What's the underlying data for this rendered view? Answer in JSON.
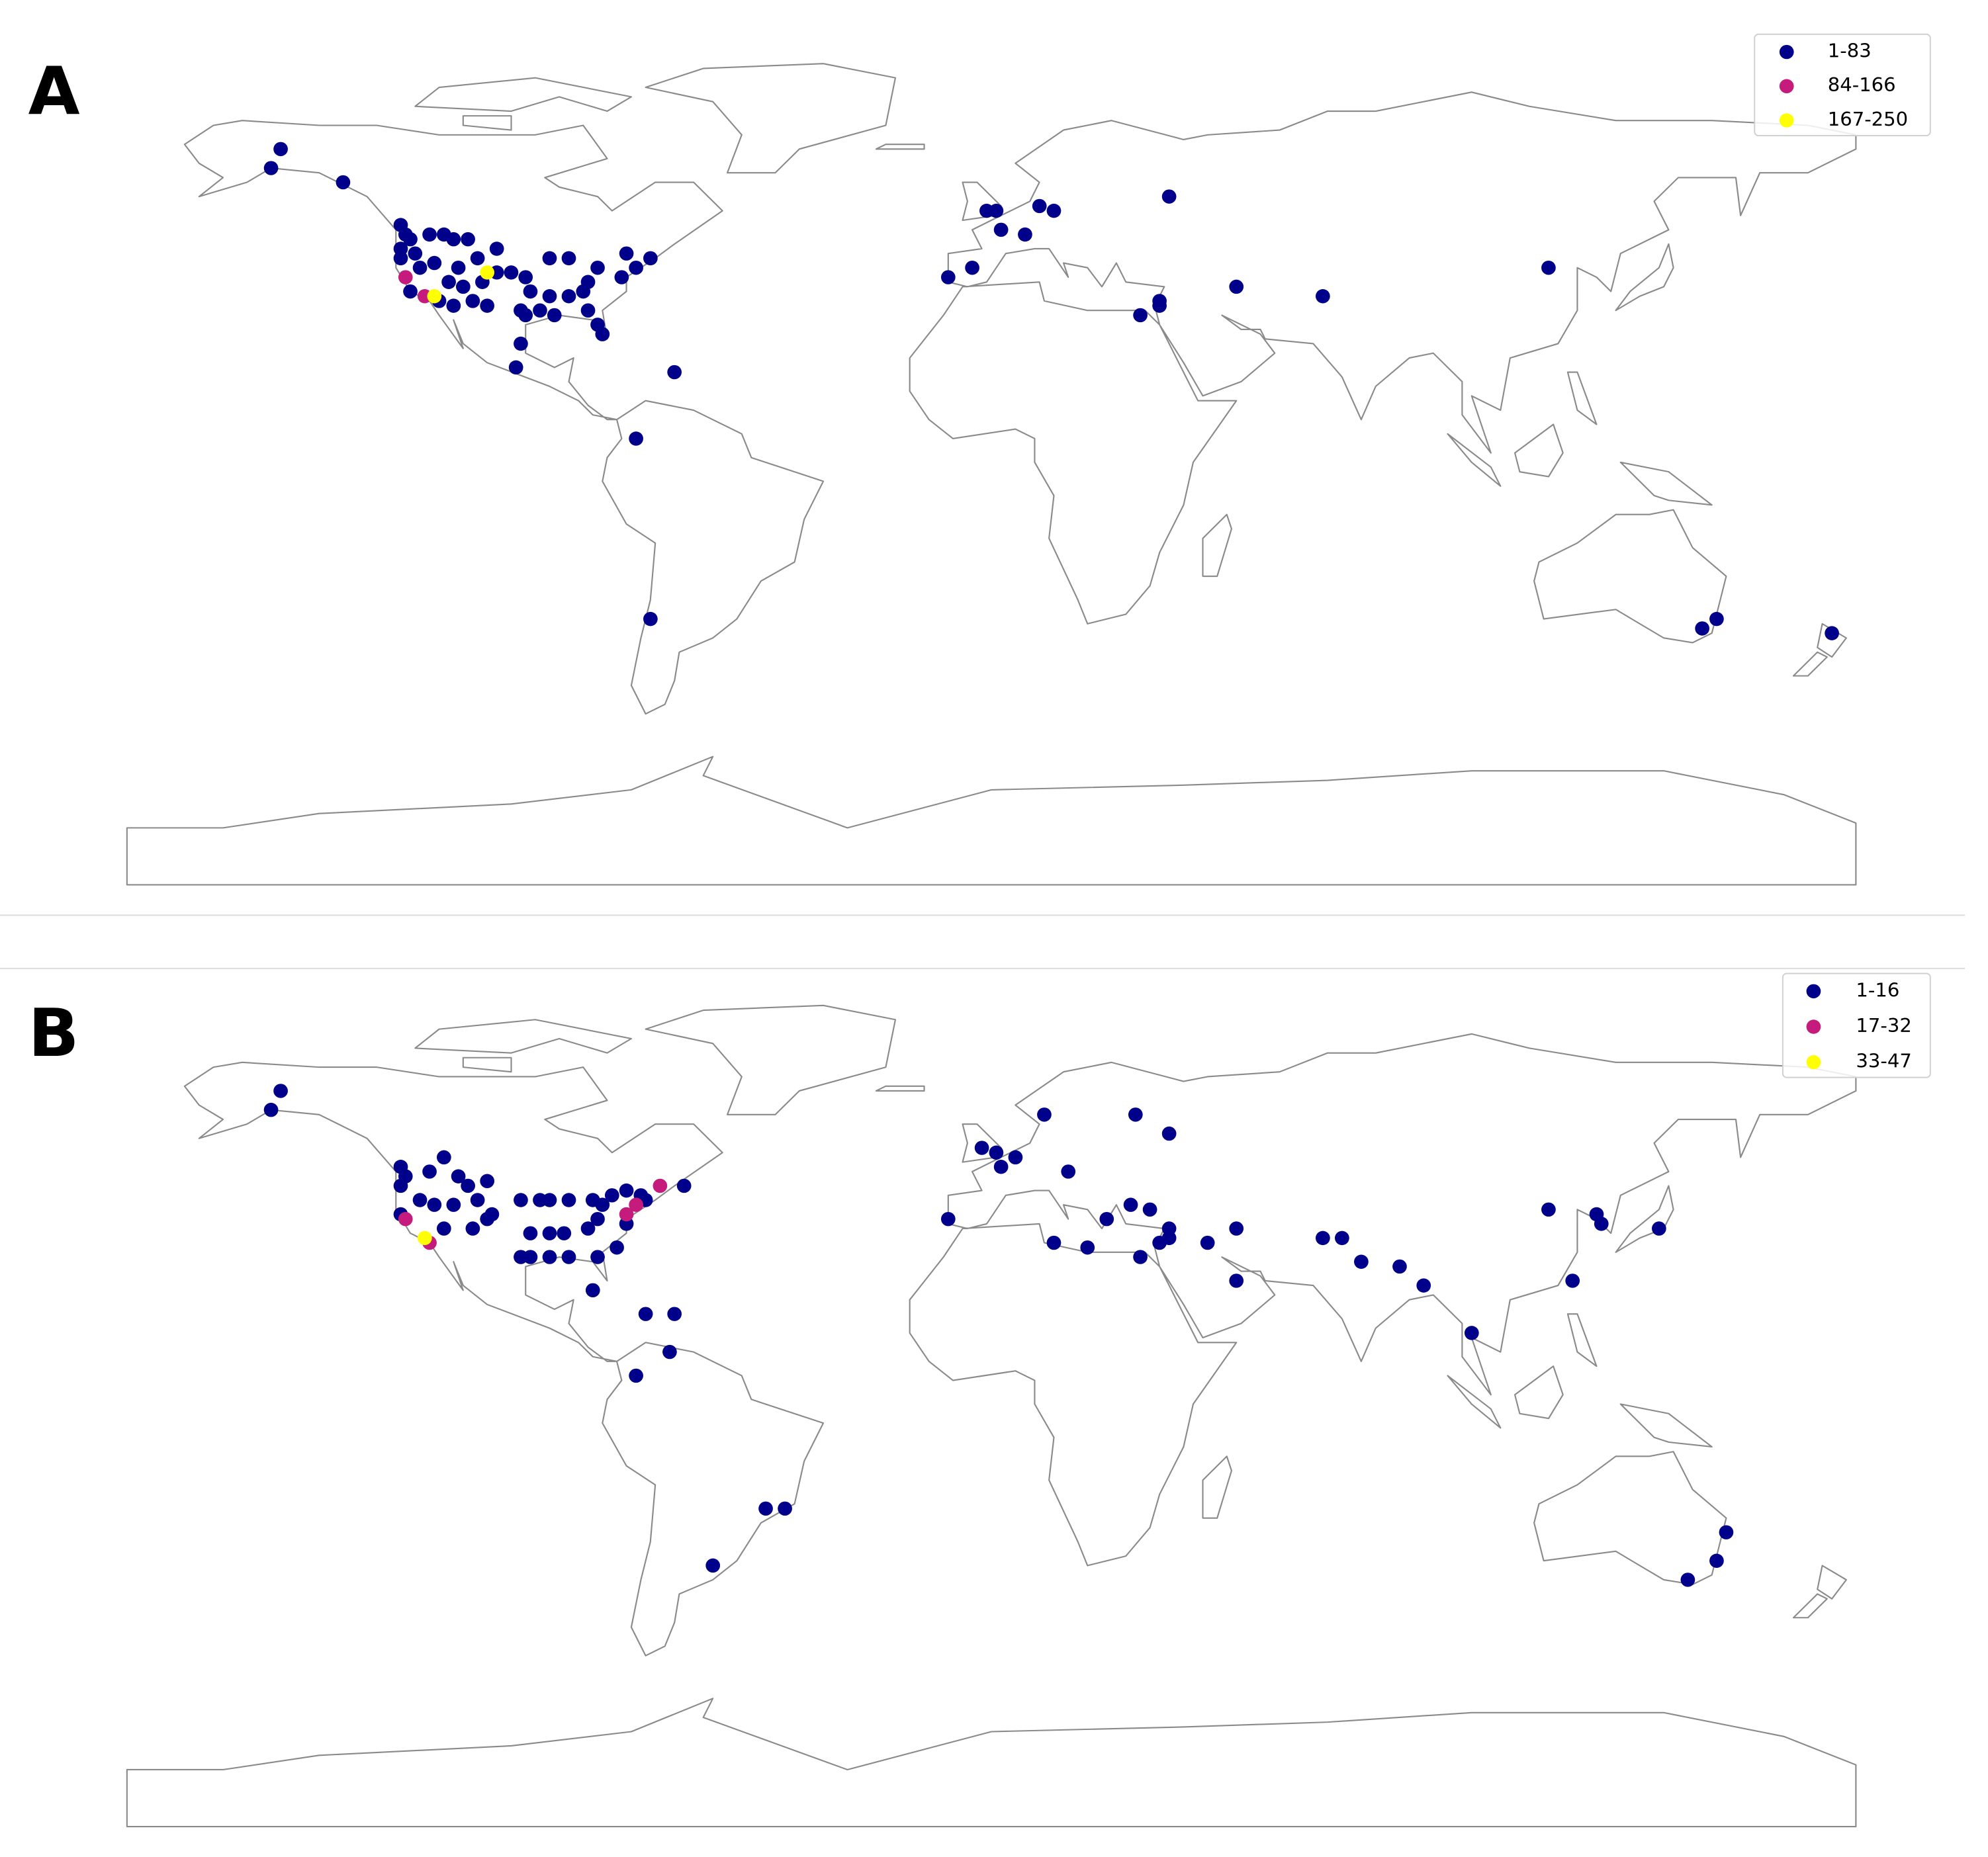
{
  "panels": [
    {
      "label": "A",
      "legend": [
        {
          "label": "1-83",
          "color": "#00008b"
        },
        {
          "label": "84-166",
          "color": "#c51b7d"
        },
        {
          "label": "167-250",
          "color": "#ffff00"
        }
      ],
      "points": [
        {
          "lon": -148,
          "lat": 65,
          "group": 0
        },
        {
          "lon": -150,
          "lat": 61,
          "group": 0
        },
        {
          "lon": -135,
          "lat": 58,
          "group": 0
        },
        {
          "lon": -123,
          "lat": 49,
          "group": 0
        },
        {
          "lon": -122,
          "lat": 47,
          "group": 0
        },
        {
          "lon": -123,
          "lat": 44,
          "group": 0
        },
        {
          "lon": -121,
          "lat": 46,
          "group": 0
        },
        {
          "lon": -117,
          "lat": 47,
          "group": 0
        },
        {
          "lon": -114,
          "lat": 47,
          "group": 0
        },
        {
          "lon": -112,
          "lat": 46,
          "group": 0
        },
        {
          "lon": -109,
          "lat": 46,
          "group": 0
        },
        {
          "lon": -103,
          "lat": 44,
          "group": 0
        },
        {
          "lon": -123,
          "lat": 42,
          "group": 0
        },
        {
          "lon": -120,
          "lat": 43,
          "group": 0
        },
        {
          "lon": -119,
          "lat": 40,
          "group": 0
        },
        {
          "lon": -116,
          "lat": 41,
          "group": 0
        },
        {
          "lon": -111,
          "lat": 40,
          "group": 0
        },
        {
          "lon": -107,
          "lat": 42,
          "group": 0
        },
        {
          "lon": -106,
          "lat": 37,
          "group": 0
        },
        {
          "lon": -103,
          "lat": 39,
          "group": 0
        },
        {
          "lon": -113,
          "lat": 37,
          "group": 0
        },
        {
          "lon": -110,
          "lat": 36,
          "group": 0
        },
        {
          "lon": -112,
          "lat": 32,
          "group": 0
        },
        {
          "lon": -115,
          "lat": 33,
          "group": 0
        },
        {
          "lon": -121,
          "lat": 35,
          "group": 0
        },
        {
          "lon": -108,
          "lat": 33,
          "group": 0
        },
        {
          "lon": -105,
          "lat": 32,
          "group": 0
        },
        {
          "lon": -100,
          "lat": 39,
          "group": 0
        },
        {
          "lon": -97,
          "lat": 38,
          "group": 0
        },
        {
          "lon": -92,
          "lat": 42,
          "group": 0
        },
        {
          "lon": -88,
          "lat": 42,
          "group": 0
        },
        {
          "lon": -96,
          "lat": 35,
          "group": 0
        },
        {
          "lon": -92,
          "lat": 34,
          "group": 0
        },
        {
          "lon": -88,
          "lat": 34,
          "group": 0
        },
        {
          "lon": -97,
          "lat": 30,
          "group": 0
        },
        {
          "lon": -98,
          "lat": 31,
          "group": 0
        },
        {
          "lon": -94,
          "lat": 31,
          "group": 0
        },
        {
          "lon": -91,
          "lat": 30,
          "group": 0
        },
        {
          "lon": -85,
          "lat": 35,
          "group": 0
        },
        {
          "lon": -84,
          "lat": 37,
          "group": 0
        },
        {
          "lon": -82,
          "lat": 40,
          "group": 0
        },
        {
          "lon": -76,
          "lat": 43,
          "group": 0
        },
        {
          "lon": -74,
          "lat": 40,
          "group": 0
        },
        {
          "lon": -71,
          "lat": 42,
          "group": 0
        },
        {
          "lon": -77,
          "lat": 38,
          "group": 0
        },
        {
          "lon": -84,
          "lat": 31,
          "group": 0
        },
        {
          "lon": -82,
          "lat": 28,
          "group": 0
        },
        {
          "lon": -81,
          "lat": 26,
          "group": 0
        },
        {
          "lon": -98,
          "lat": 24,
          "group": 0
        },
        {
          "lon": -99,
          "lat": 19,
          "group": 0
        },
        {
          "lon": -66,
          "lat": 18,
          "group": 0
        },
        {
          "lon": -122,
          "lat": 38,
          "group": 1
        },
        {
          "lon": -118,
          "lat": 34,
          "group": 1
        },
        {
          "lon": -105,
          "lat": 39,
          "group": 2
        },
        {
          "lon": -116,
          "lat": 34,
          "group": 2
        },
        {
          "lon": -74,
          "lat": 4,
          "group": 0
        },
        {
          "lon": -71,
          "lat": -34,
          "group": 0
        },
        {
          "lon": -9,
          "lat": 38,
          "group": 0
        },
        {
          "lon": -4,
          "lat": 40,
          "group": 0
        },
        {
          "lon": -1,
          "lat": 52,
          "group": 0
        },
        {
          "lon": 1,
          "lat": 52,
          "group": 0
        },
        {
          "lon": 2,
          "lat": 48,
          "group": 0
        },
        {
          "lon": 10,
          "lat": 53,
          "group": 0
        },
        {
          "lon": 13,
          "lat": 52,
          "group": 0
        },
        {
          "lon": 7,
          "lat": 47,
          "group": 0
        },
        {
          "lon": 37,
          "lat": 55,
          "group": 0
        },
        {
          "lon": 31,
          "lat": 30,
          "group": 0
        },
        {
          "lon": 35,
          "lat": 33,
          "group": 0
        },
        {
          "lon": 35,
          "lat": 32,
          "group": 0
        },
        {
          "lon": 51,
          "lat": 36,
          "group": 0
        },
        {
          "lon": 69,
          "lat": 34,
          "group": 0
        },
        {
          "lon": 116,
          "lat": 40,
          "group": 0
        },
        {
          "lon": 148,
          "lat": -36,
          "group": 0
        },
        {
          "lon": 151,
          "lat": -34,
          "group": 0
        },
        {
          "lon": 175,
          "lat": -37,
          "group": 0
        }
      ]
    },
    {
      "label": "B",
      "legend": [
        {
          "label": "1-16",
          "color": "#00008b"
        },
        {
          "label": "17-32",
          "color": "#c51b7d"
        },
        {
          "label": "33-47",
          "color": "#ffff00"
        }
      ],
      "points": [
        {
          "lon": -148,
          "lat": 65,
          "group": 0
        },
        {
          "lon": -150,
          "lat": 61,
          "group": 0
        },
        {
          "lon": -123,
          "lat": 49,
          "group": 0
        },
        {
          "lon": -122,
          "lat": 47,
          "group": 0
        },
        {
          "lon": -123,
          "lat": 45,
          "group": 0
        },
        {
          "lon": -117,
          "lat": 48,
          "group": 0
        },
        {
          "lon": -114,
          "lat": 51,
          "group": 0
        },
        {
          "lon": -111,
          "lat": 47,
          "group": 0
        },
        {
          "lon": -109,
          "lat": 45,
          "group": 0
        },
        {
          "lon": -123,
          "lat": 39,
          "group": 0
        },
        {
          "lon": -119,
          "lat": 42,
          "group": 0
        },
        {
          "lon": -116,
          "lat": 41,
          "group": 0
        },
        {
          "lon": -112,
          "lat": 41,
          "group": 0
        },
        {
          "lon": -107,
          "lat": 42,
          "group": 0
        },
        {
          "lon": -105,
          "lat": 46,
          "group": 0
        },
        {
          "lon": -104,
          "lat": 39,
          "group": 0
        },
        {
          "lon": -114,
          "lat": 36,
          "group": 0
        },
        {
          "lon": -108,
          "lat": 36,
          "group": 0
        },
        {
          "lon": -105,
          "lat": 38,
          "group": 0
        },
        {
          "lon": -98,
          "lat": 42,
          "group": 0
        },
        {
          "lon": -94,
          "lat": 42,
          "group": 0
        },
        {
          "lon": -92,
          "lat": 42,
          "group": 0
        },
        {
          "lon": -88,
          "lat": 42,
          "group": 0
        },
        {
          "lon": -83,
          "lat": 42,
          "group": 0
        },
        {
          "lon": -81,
          "lat": 41,
          "group": 0
        },
        {
          "lon": -79,
          "lat": 43,
          "group": 0
        },
        {
          "lon": -76,
          "lat": 44,
          "group": 0
        },
        {
          "lon": -73,
          "lat": 43,
          "group": 0
        },
        {
          "lon": -72,
          "lat": 42,
          "group": 0
        },
        {
          "lon": -96,
          "lat": 35,
          "group": 0
        },
        {
          "lon": -92,
          "lat": 35,
          "group": 0
        },
        {
          "lon": -89,
          "lat": 35,
          "group": 0
        },
        {
          "lon": -84,
          "lat": 36,
          "group": 0
        },
        {
          "lon": -82,
          "lat": 38,
          "group": 0
        },
        {
          "lon": -98,
          "lat": 30,
          "group": 0
        },
        {
          "lon": -96,
          "lat": 30,
          "group": 0
        },
        {
          "lon": -92,
          "lat": 30,
          "group": 0
        },
        {
          "lon": -88,
          "lat": 30,
          "group": 0
        },
        {
          "lon": -82,
          "lat": 30,
          "group": 0
        },
        {
          "lon": -78,
          "lat": 32,
          "group": 0
        },
        {
          "lon": -76,
          "lat": 37,
          "group": 0
        },
        {
          "lon": -64,
          "lat": 45,
          "group": 0
        },
        {
          "lon": -83,
          "lat": 23,
          "group": 0
        },
        {
          "lon": -72,
          "lat": 18,
          "group": 0
        },
        {
          "lon": -66,
          "lat": 18,
          "group": 0
        },
        {
          "lon": -67,
          "lat": 10,
          "group": 0
        },
        {
          "lon": -74,
          "lat": 5,
          "group": 0
        },
        {
          "lon": -122,
          "lat": 38,
          "group": 1
        },
        {
          "lon": -117,
          "lat": 33,
          "group": 1
        },
        {
          "lon": -76,
          "lat": 39,
          "group": 1
        },
        {
          "lon": -74,
          "lat": 41,
          "group": 1
        },
        {
          "lon": -69,
          "lat": 45,
          "group": 1
        },
        {
          "lon": -118,
          "lat": 34,
          "group": 2
        },
        {
          "lon": -47,
          "lat": -23,
          "group": 0
        },
        {
          "lon": -43,
          "lat": -23,
          "group": 0
        },
        {
          "lon": -58,
          "lat": -35,
          "group": 0
        },
        {
          "lon": -9,
          "lat": 38,
          "group": 0
        },
        {
          "lon": -2,
          "lat": 53,
          "group": 0
        },
        {
          "lon": 1,
          "lat": 52,
          "group": 0
        },
        {
          "lon": 5,
          "lat": 51,
          "group": 0
        },
        {
          "lon": 2,
          "lat": 49,
          "group": 0
        },
        {
          "lon": 11,
          "lat": 60,
          "group": 0
        },
        {
          "lon": 16,
          "lat": 48,
          "group": 0
        },
        {
          "lon": 30,
          "lat": 60,
          "group": 0
        },
        {
          "lon": 37,
          "lat": 56,
          "group": 0
        },
        {
          "lon": 13,
          "lat": 33,
          "group": 0
        },
        {
          "lon": 20,
          "lat": 32,
          "group": 0
        },
        {
          "lon": 24,
          "lat": 38,
          "group": 0
        },
        {
          "lon": 29,
          "lat": 41,
          "group": 0
        },
        {
          "lon": 33,
          "lat": 40,
          "group": 0
        },
        {
          "lon": 37,
          "lat": 36,
          "group": 0
        },
        {
          "lon": 31,
          "lat": 30,
          "group": 0
        },
        {
          "lon": 35,
          "lat": 33,
          "group": 0
        },
        {
          "lon": 37,
          "lat": 34,
          "group": 0
        },
        {
          "lon": 45,
          "lat": 33,
          "group": 0
        },
        {
          "lon": 51,
          "lat": 36,
          "group": 0
        },
        {
          "lon": 51,
          "lat": 25,
          "group": 0
        },
        {
          "lon": 69,
          "lat": 34,
          "group": 0
        },
        {
          "lon": 73,
          "lat": 34,
          "group": 0
        },
        {
          "lon": 77,
          "lat": 29,
          "group": 0
        },
        {
          "lon": 85,
          "lat": 28,
          "group": 0
        },
        {
          "lon": 90,
          "lat": 24,
          "group": 0
        },
        {
          "lon": 100,
          "lat": 14,
          "group": 0
        },
        {
          "lon": 116,
          "lat": 40,
          "group": 0
        },
        {
          "lon": 126,
          "lat": 39,
          "group": 0
        },
        {
          "lon": 127,
          "lat": 37,
          "group": 0
        },
        {
          "lon": 139,
          "lat": 36,
          "group": 0
        },
        {
          "lon": 121,
          "lat": 25,
          "group": 0
        },
        {
          "lon": 153,
          "lat": -28,
          "group": 0
        },
        {
          "lon": 151,
          "lat": -34,
          "group": 0
        },
        {
          "lon": 145,
          "lat": -38,
          "group": 0
        }
      ]
    }
  ]
}
